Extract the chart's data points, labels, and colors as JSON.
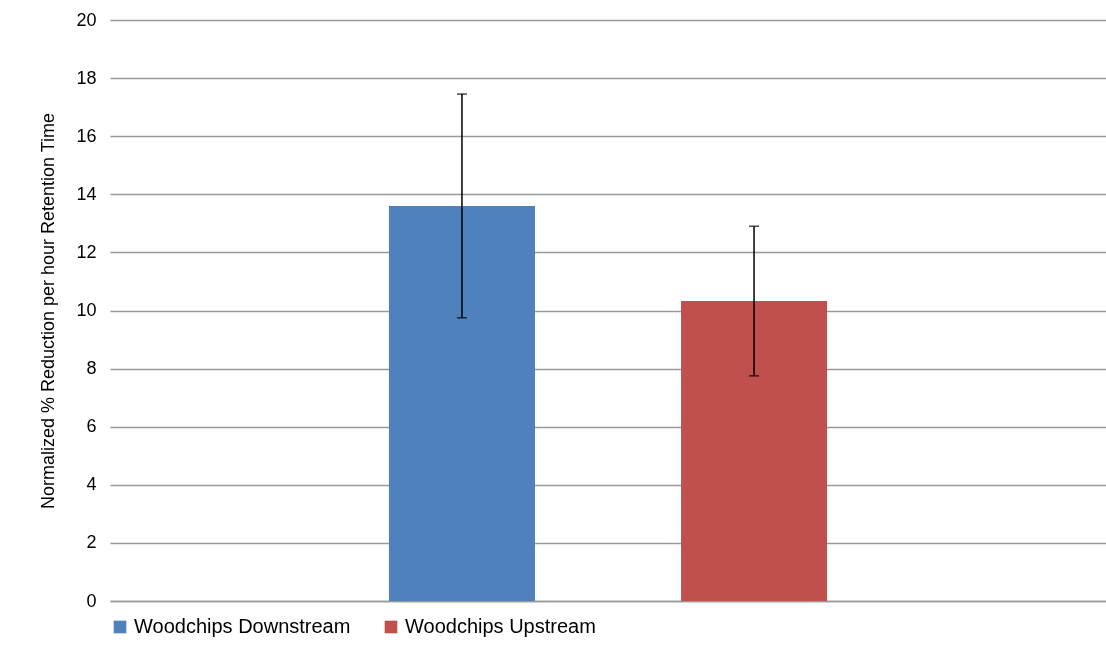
{
  "chart_data": {
    "type": "bar",
    "ylabel": "Normalized % Reduction per hour Retention Time",
    "categories": [
      null
    ],
    "series": [
      {
        "name": "Woodchips Downstream",
        "color": "#4f81bd",
        "values": [
          13.6
        ],
        "errors": [
          [
            9.75,
            17.45
          ]
        ]
      },
      {
        "name": "Woodchips Upstream",
        "color": "#c0504d",
        "values": [
          10.33
        ],
        "errors": [
          [
            7.75,
            12.9
          ]
        ]
      }
    ],
    "ylim": [
      0,
      20
    ],
    "yticks": [
      0,
      2,
      4,
      6,
      8,
      10,
      12,
      14,
      16,
      18,
      20
    ],
    "grid": "y",
    "legend": "bottom",
    "tick_labels": "y"
  }
}
